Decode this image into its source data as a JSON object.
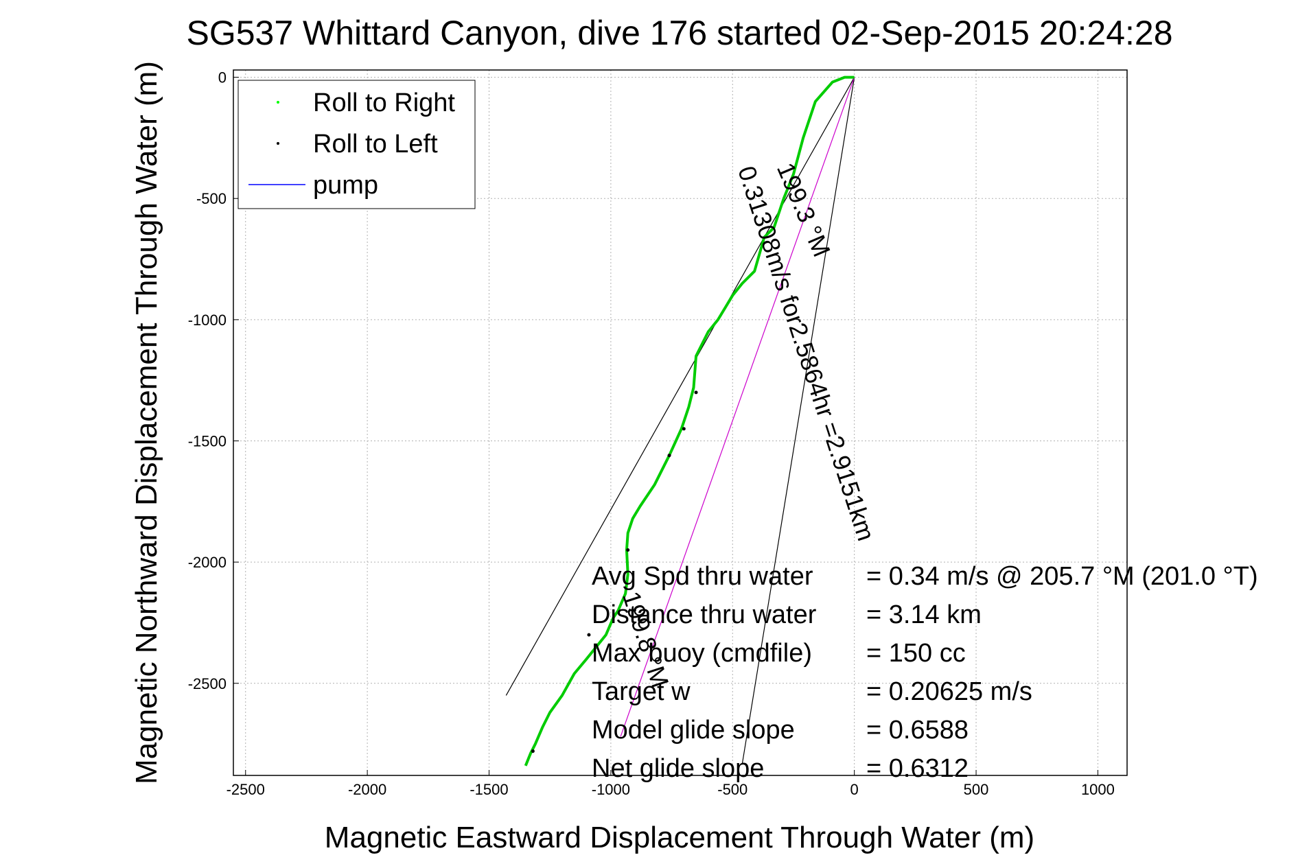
{
  "chart_data": {
    "type": "line",
    "title": "SG537 Whittard Canyon, dive 176 started 02-Sep-2015 20:24:28",
    "xlabel": "Magnetic Eastward Displacement Through Water (m)",
    "ylabel": "Magnetic Northward Displacement Through Water (m)",
    "xlim": [
      -2550,
      1120
    ],
    "ylim": [
      -2880,
      30
    ],
    "xticks": [
      -2500,
      -2000,
      -1500,
      -1000,
      -500,
      0,
      500,
      1000
    ],
    "yticks": [
      0,
      -500,
      -1000,
      -1500,
      -2000,
      -2500
    ],
    "xtick_labels": [
      "-2500",
      "-2000",
      "-1500",
      "-1000",
      "-500",
      "0",
      "500",
      "1000"
    ],
    "ytick_labels": [
      "0",
      "-500",
      "-1000",
      "-1500",
      "-2000",
      "-2500"
    ],
    "grid": true,
    "legend_position": "top-left",
    "legend": [
      {
        "label": "Roll to Right",
        "color": "#00ff00",
        "marker": "dot"
      },
      {
        "label": "Roll to Left",
        "color": "#000000",
        "marker": "dot"
      },
      {
        "label": "pump",
        "color": "#0000ff",
        "marker": "line"
      }
    ],
    "series": [
      {
        "name": "Roll to Right",
        "color": "#00cc00",
        "x": [
          0,
          -40,
          -90,
          -160,
          -210,
          -250,
          -290,
          -330,
          -370,
          -410,
          -460,
          -500,
          -560,
          -600,
          -650,
          -660,
          -680,
          -710,
          -760,
          -820,
          -880,
          -910,
          -930,
          -935,
          -930,
          -940,
          -970,
          -990,
          -1020,
          -1060,
          -1100,
          -1150,
          -1200,
          -1250,
          -1280,
          -1310,
          -1330,
          -1350
        ],
        "y": [
          0,
          0,
          -20,
          -100,
          -250,
          -400,
          -500,
          -620,
          -660,
          -800,
          -850,
          -900,
          -1000,
          -1050,
          -1150,
          -1280,
          -1360,
          -1450,
          -1560,
          -1680,
          -1770,
          -1820,
          -1880,
          -1950,
          -2050,
          -2130,
          -2200,
          -2230,
          -2300,
          -2350,
          -2400,
          -2460,
          -2550,
          -2620,
          -2680,
          -2750,
          -2790,
          -2840
        ]
      },
      {
        "name": "Roll to Left",
        "color": "#000000",
        "x": [
          -650,
          -700,
          -760,
          -930,
          -1090,
          -1320
        ],
        "y": [
          -1300,
          -1450,
          -1560,
          -1950,
          -2300,
          -2780
        ]
      }
    ],
    "lines": [
      {
        "name": "target-line",
        "color": "#000000",
        "x": [
          0,
          -1430
        ],
        "y": [
          0,
          -2550
        ]
      },
      {
        "name": "net-line",
        "color": "#000000",
        "x": [
          0,
          -460
        ],
        "y": [
          0,
          -2830
        ]
      },
      {
        "name": "heading-line",
        "color": "#cc00cc",
        "x": [
          0,
          -960
        ],
        "y": [
          0,
          -2720
        ]
      }
    ],
    "annotations": [
      {
        "text": "199.3 °M",
        "x": -240,
        "y": -560
      },
      {
        "text": "0.31308m/s for2.5864hr =2.9151km",
        "x": -230,
        "y": -1150
      },
      {
        "text": "199.8 °M",
        "x": -890,
        "y": -2330
      }
    ],
    "info_lines": [
      {
        "label": "Avg Spd thru water",
        "value": "=  0.34 m/s @ 205.7 °M (201.0 °T)"
      },
      {
        "label": "Distance thru water",
        "value": "=  3.14 km"
      },
      {
        "label": "Max buoy (cmdfile)",
        "value": "= 150 cc"
      },
      {
        "label": "Target w",
        "value": "= 0.20625 m/s"
      },
      {
        "label": "Model glide slope",
        "value": "= 0.6588"
      },
      {
        "label": "Net glide slope",
        "value": "= 0.6312"
      }
    ]
  }
}
